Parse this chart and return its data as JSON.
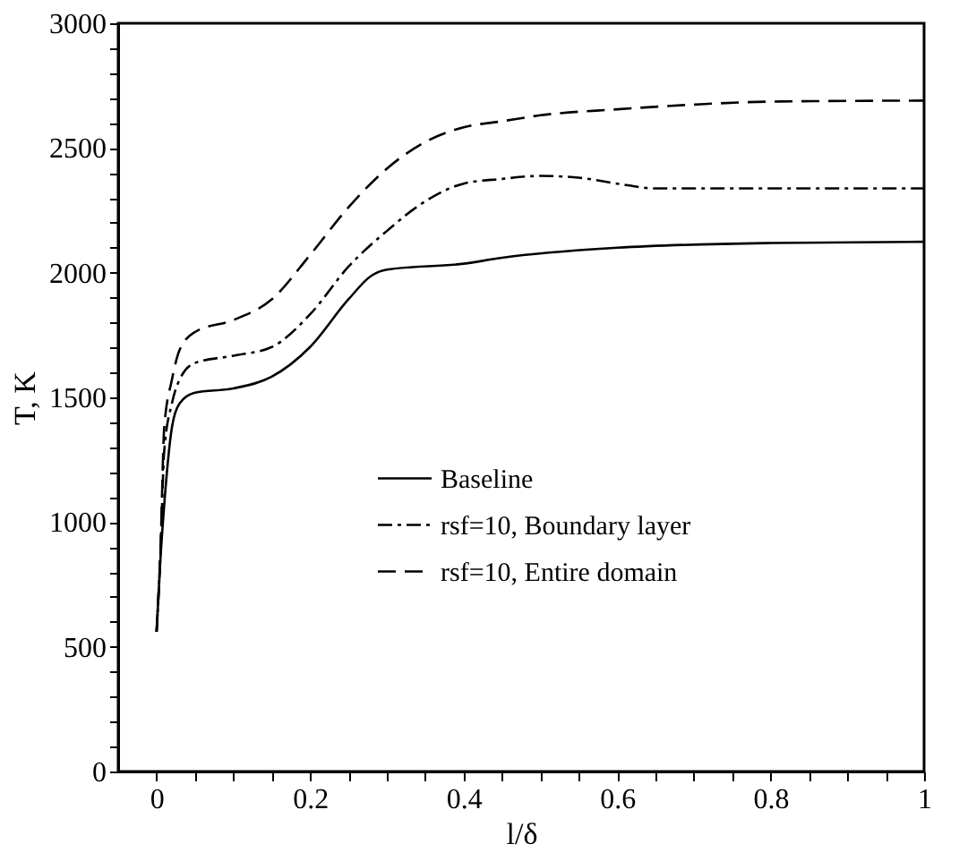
{
  "chart_data": {
    "type": "line",
    "xlabel": "l/δ",
    "ylabel": "T, K",
    "xlim": [
      -0.05,
      1
    ],
    "ylim": [
      0,
      3000
    ],
    "xticks": [
      0,
      {
        "value": 0.05,
        "label": null
      },
      {
        "value": 0.1,
        "label": null
      },
      {
        "value": 0.15,
        "label": null
      },
      0.2,
      {
        "value": 0.25,
        "label": null
      },
      {
        "value": 0.3,
        "label": null
      },
      {
        "value": 0.35,
        "label": null
      },
      0.4,
      {
        "value": 0.45,
        "label": null
      },
      {
        "value": 0.5,
        "label": null
      },
      {
        "value": 0.55,
        "label": null
      },
      0.6,
      {
        "value": 0.65,
        "label": null
      },
      {
        "value": 0.7,
        "label": null
      },
      {
        "value": 0.75,
        "label": null
      },
      0.8,
      {
        "value": 0.85,
        "label": null
      },
      {
        "value": 0.9,
        "label": null
      },
      {
        "value": 0.95,
        "label": null
      },
      1
    ],
    "yticks": [
      0,
      {
        "value": 100,
        "label": null
      },
      {
        "value": 200,
        "label": null
      },
      {
        "value": 300,
        "label": null
      },
      {
        "value": 400,
        "label": null
      },
      500,
      {
        "value": 600,
        "label": null
      },
      {
        "value": 700,
        "label": null
      },
      {
        "value": 800,
        "label": null
      },
      {
        "value": 900,
        "label": null
      },
      1000,
      {
        "value": 1100,
        "label": null
      },
      {
        "value": 1200,
        "label": null
      },
      {
        "value": 1300,
        "label": null
      },
      {
        "value": 1400,
        "label": null
      },
      1500,
      {
        "value": 1600,
        "label": null
      },
      {
        "value": 1700,
        "label": null
      },
      {
        "value": 1800,
        "label": null
      },
      {
        "value": 1900,
        "label": null
      },
      2000,
      {
        "value": 2100,
        "label": null
      },
      {
        "value": 2200,
        "label": null
      },
      {
        "value": 2300,
        "label": null
      },
      {
        "value": 2400,
        "label": null
      },
      2500,
      {
        "value": 2600,
        "label": null
      },
      {
        "value": 2700,
        "label": null
      },
      {
        "value": 2800,
        "label": null
      },
      {
        "value": 2900,
        "label": null
      },
      3000
    ],
    "grid": false,
    "legend": "center",
    "marker": "none",
    "series": [
      {
        "name": "Baseline",
        "color": "#000000",
        "line_style": "solid",
        "x": [
          0,
          0.005,
          0.01,
          0.02,
          0.03,
          0.05,
          0.1,
          0.15,
          0.2,
          0.25,
          0.28,
          0.3,
          0.4,
          0.45,
          0.6,
          0.8,
          1
        ],
        "values": [
          560,
          850,
          1070,
          1380,
          1476,
          1519,
          1536,
          1583,
          1702,
          1893,
          1988,
          2012,
          2036,
          2060,
          2100,
          2119,
          2124
        ]
      },
      {
        "name": "rsf=10, Boundary layer",
        "color": "#000000",
        "line_style": "dashdot",
        "x": [
          0,
          0.005,
          0.01,
          0.02,
          0.03,
          0.05,
          0.1,
          0.15,
          0.2,
          0.25,
          0.3,
          0.35,
          0.4,
          0.45,
          0.5,
          0.55,
          0.6,
          0.65,
          0.7,
          1
        ],
        "values": [
          560,
          870,
          1286,
          1476,
          1571,
          1638,
          1667,
          1702,
          1833,
          2024,
          2167,
          2286,
          2357,
          2376,
          2388,
          2381,
          2357,
          2338,
          2338,
          2338
        ]
      },
      {
        "name": "rsf=10, Entire domain",
        "color": "#000000",
        "line_style": "dashed",
        "x": [
          0,
          0.005,
          0.01,
          0.02,
          0.03,
          0.05,
          0.1,
          0.15,
          0.2,
          0.25,
          0.3,
          0.35,
          0.4,
          0.45,
          0.5,
          0.6,
          0.7,
          0.8,
          1
        ],
        "values": [
          560,
          880,
          1380,
          1571,
          1690,
          1762,
          1810,
          1893,
          2071,
          2262,
          2417,
          2524,
          2583,
          2607,
          2631,
          2655,
          2674,
          2686,
          2690
        ]
      }
    ]
  }
}
